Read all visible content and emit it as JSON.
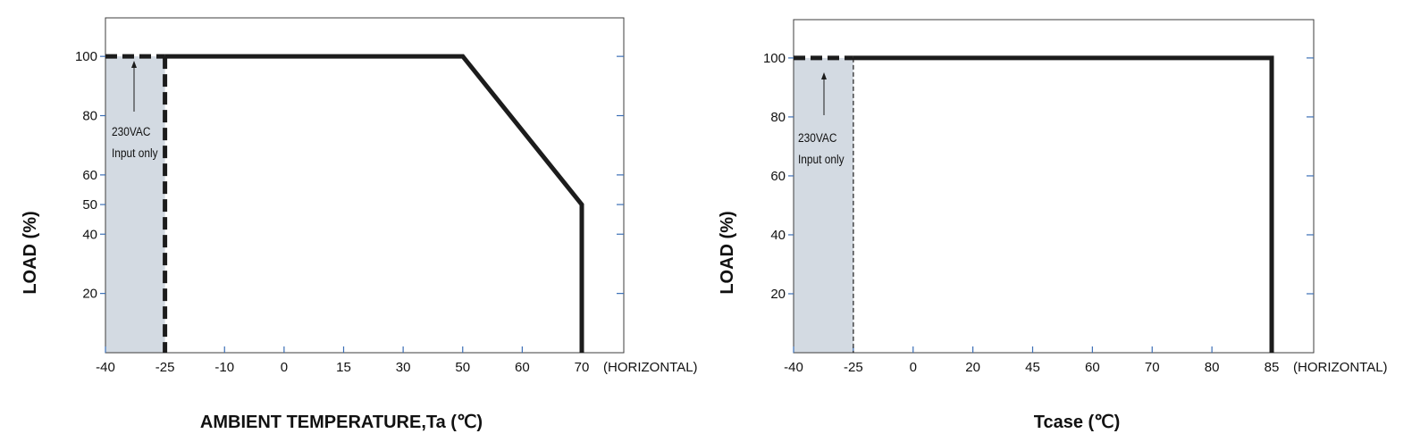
{
  "colors": {
    "line": "#1c1c1c",
    "frame": "#3c3c3c",
    "tick": "#3b6fb6",
    "shade": "#d3dae2"
  },
  "chart_data": [
    {
      "type": "line",
      "xlabel": "AMBIENT TEMPERATURE,Ta (℃)",
      "ylabel": "LOAD (%)",
      "x_axis_note": "(HORIZONTAL)",
      "x_ticks": [
        -40,
        -25,
        -10,
        0,
        15,
        30,
        50,
        60,
        70
      ],
      "y_ticks": [
        100,
        80,
        60,
        50,
        40,
        20
      ],
      "ylim": [
        0,
        113
      ],
      "grid": false,
      "shaded_region": {
        "x": [
          -40,
          -25
        ],
        "y": [
          0,
          100
        ]
      },
      "annotation": [
        "230VAC",
        "Input only"
      ],
      "lines": [
        {
          "dashed": true,
          "points": [
            [
              -40,
              100
            ],
            [
              -25,
              100
            ]
          ]
        },
        {
          "dashed": false,
          "points": [
            [
              -25,
              100
            ],
            [
              50,
              100
            ],
            [
              70,
              50
            ],
            [
              70,
              0
            ]
          ]
        },
        {
          "dashed": true,
          "points": [
            [
              -25,
              100
            ],
            [
              -25,
              0
            ]
          ]
        }
      ]
    },
    {
      "type": "line",
      "xlabel": "Tcase (℃)",
      "ylabel": "LOAD (%)",
      "x_axis_note": "(HORIZONTAL)",
      "x_ticks": [
        -40,
        -25,
        0,
        20,
        45,
        60,
        70,
        80,
        85
      ],
      "y_ticks": [
        100,
        80,
        60,
        40,
        20
      ],
      "ylim": [
        0,
        113
      ],
      "grid": false,
      "shaded_region": {
        "x": [
          -40,
          -25
        ],
        "y": [
          0,
          100
        ]
      },
      "annotation": [
        "230VAC",
        "Input only"
      ],
      "lines": [
        {
          "dashed": true,
          "points": [
            [
              -40,
              100
            ],
            [
              -25,
              100
            ]
          ]
        },
        {
          "dashed": false,
          "points": [
            [
              -25,
              100
            ],
            [
              85,
              100
            ],
            [
              85,
              0
            ]
          ]
        },
        {
          "dashed": true,
          "points": [
            [
              -25,
              100
            ],
            [
              -25,
              0
            ]
          ]
        }
      ]
    }
  ]
}
